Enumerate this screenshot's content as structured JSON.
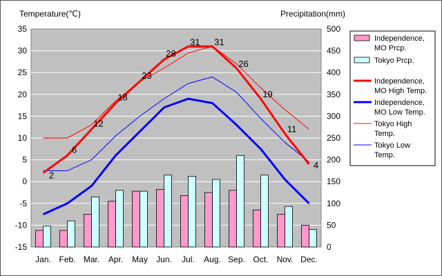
{
  "chart_data": {
    "type": "bar+line",
    "categories": [
      "Jan.",
      "Feb.",
      "Mar.",
      "Apr.",
      "May",
      "Jun.",
      "Jul.",
      "Aug.",
      "Sep.",
      "Oct.",
      "Nov.",
      "Dec."
    ],
    "left_axis": {
      "label": "Temperature(℃)",
      "min": -15,
      "max": 35,
      "step": 5,
      "ticks": [
        "35",
        "30",
        "25",
        "20",
        "15",
        "10",
        "5",
        "0",
        "-5",
        "-10",
        "-15"
      ]
    },
    "right_axis": {
      "label": "Precipitation(mm)",
      "min": 0,
      "max": 500,
      "step": 50,
      "ticks": [
        "500",
        "450",
        "400",
        "350",
        "300",
        "250",
        "200",
        "150",
        "100",
        "50",
        "0"
      ]
    },
    "grid": true,
    "legend_position": "right",
    "bars": [
      {
        "name": "Independence, MO Prcp.",
        "color": "#ff99cc",
        "values": [
          38,
          38,
          75,
          105,
          128,
          132,
          118,
          125,
          130,
          85,
          75,
          50
        ]
      },
      {
        "name": "Tokyo Prcp.",
        "color": "#ccffff",
        "values": [
          48,
          60,
          115,
          130,
          128,
          165,
          162,
          155,
          210,
          165,
          93,
          40
        ]
      }
    ],
    "lines": [
      {
        "name": "Independence, MO High Temp.",
        "color": "#ff0000",
        "width": 3,
        "values": [
          2,
          6,
          12,
          18,
          23,
          28,
          31,
          31,
          26,
          19,
          11,
          4
        ],
        "labels": [
          "2",
          "6",
          "12",
          "18",
          "23",
          "28",
          "31",
          "31",
          "26",
          "19",
          "11",
          "4"
        ]
      },
      {
        "name": "Independence, MO Low Temp.",
        "color": "#0000ff",
        "width": 3,
        "values": [
          -7.5,
          -5,
          -1,
          6,
          11.5,
          17,
          19,
          18,
          13,
          7.5,
          0.5,
          -5
        ]
      },
      {
        "name": "Tokyo High Temp.",
        "color": "#ff0000",
        "width": 1,
        "values": [
          10,
          10,
          13,
          18.5,
          23,
          26,
          29.5,
          31,
          27,
          21.5,
          16.5,
          12
        ]
      },
      {
        "name": "Tokyo Low Temp.",
        "color": "#0000ff",
        "width": 1,
        "values": [
          2.5,
          2.5,
          5,
          10.5,
          15,
          19,
          22.5,
          24,
          20.5,
          14.5,
          9,
          4.5
        ]
      }
    ],
    "legend": [
      {
        "text": [
          "Independence,",
          "MO Prcp."
        ]
      },
      {
        "text": [
          "Tokyo Prcp."
        ]
      },
      {
        "text": [
          "Independence,",
          "MO High Temp."
        ]
      },
      {
        "text": [
          "Independence,",
          "MO Low Temp."
        ]
      },
      {
        "text": [
          "Tokyo High",
          "Temp."
        ]
      },
      {
        "text": [
          "Tokyo Low",
          "Temp."
        ]
      }
    ]
  }
}
